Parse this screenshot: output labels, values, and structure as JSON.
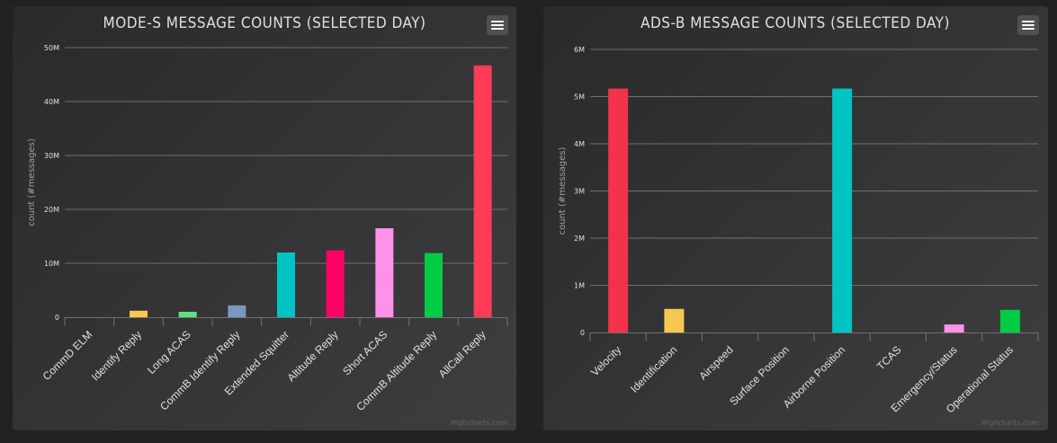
{
  "colors": {
    "background": "#222222",
    "panel": "#2a2a2b",
    "text": "#e0e0e3",
    "grid": "#707073"
  },
  "chart_data": [
    {
      "type": "bar",
      "title": "MODE-S MESSAGE COUNTS (SELECTED DAY)",
      "ylabel": "count (#messages)",
      "xlabel": "",
      "ylim": [
        0,
        50000000
      ],
      "ytick_values": [
        0,
        10000000,
        20000000,
        30000000,
        40000000,
        50000000
      ],
      "ytick_labels": [
        "0",
        "10M",
        "20M",
        "30M",
        "40M",
        "50M"
      ],
      "categories": [
        "CommD ELM",
        "Identify Reply",
        "Long ACAS",
        "CommB Identify Reply",
        "Extended Squitter",
        "Altitude Reply",
        "Short ACAS",
        "CommB Altitude Reply",
        "AllCall Reply"
      ],
      "values": [
        0,
        1200000,
        1000000,
        2200000,
        12000000,
        12400000,
        16500000,
        11900000,
        46700000
      ],
      "colors": [
        "#2b908f",
        "#f7c851",
        "#5fe07a",
        "#7798bf",
        "#00c3c3",
        "#ff0066",
        "#ff92e8",
        "#00cc44",
        "#ff3b56"
      ],
      "grid": true,
      "legend": "none",
      "credits": "Highcharts.com"
    },
    {
      "type": "bar",
      "title": "ADS-B MESSAGE COUNTS (SELECTED DAY)",
      "ylabel": "count (#messages)",
      "xlabel": "",
      "ylim": [
        0,
        6000000
      ],
      "ytick_values": [
        0,
        1000000,
        2000000,
        3000000,
        4000000,
        5000000,
        6000000
      ],
      "ytick_labels": [
        "0",
        "1M",
        "2M",
        "3M",
        "4M",
        "5M",
        "6M"
      ],
      "categories": [
        "Velocity",
        "Identification",
        "Airspeed",
        "Surface Position",
        "Airborne Position",
        "TCAS",
        "Emergency/Status",
        "Operational Status"
      ],
      "values": [
        5170000,
        500000,
        0,
        0,
        5170000,
        0,
        170000,
        480000
      ],
      "colors": [
        "#f2334a",
        "#f7c851",
        "#5fe07a",
        "#7798bf",
        "#00c3c3",
        "#ff0066",
        "#ff92e8",
        "#00cc44"
      ],
      "grid": true,
      "legend": "none",
      "credits": "Highcharts.com"
    }
  ]
}
